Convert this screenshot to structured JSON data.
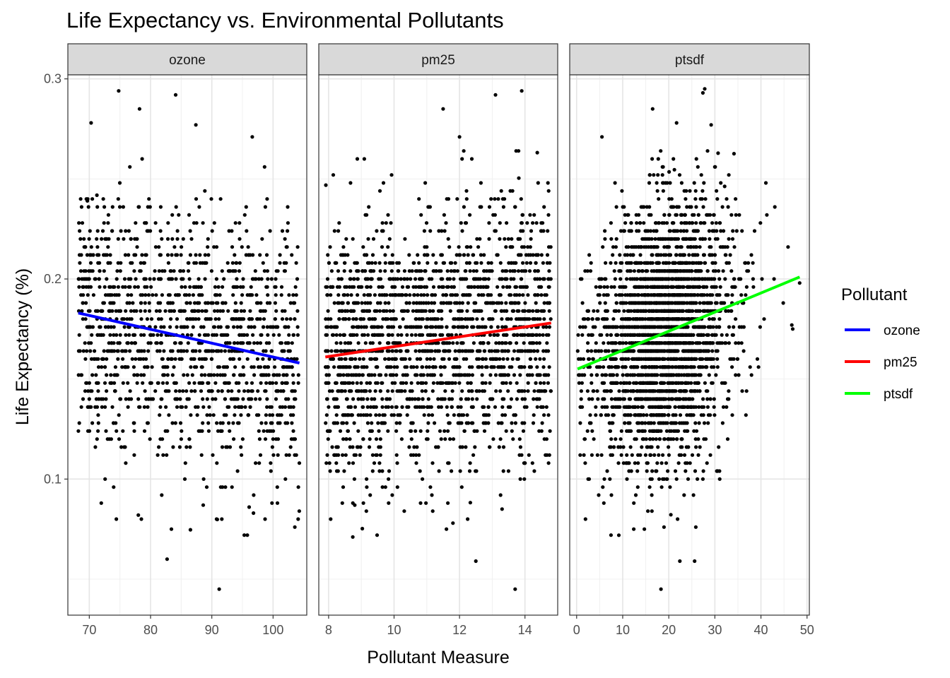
{
  "chart_data": {
    "type": "scatter",
    "title": "Life Expectancy vs. Environmental Pollutants",
    "xlabel": "Pollutant Measure",
    "ylabel": "Life Expectancy (%)",
    "ylim": [
      0.032,
      0.302
    ],
    "yticks": [
      0.1,
      0.2,
      0.3
    ],
    "yminor": [
      0.05,
      0.15,
      0.25
    ],
    "grid": true,
    "legend": {
      "title": "Pollutant",
      "position": "right",
      "entries": [
        {
          "label": "ozone",
          "color": "#0000FF"
        },
        {
          "label": "pm25",
          "color": "#FF0000"
        },
        {
          "label": "ptsdf",
          "color": "#00FF00"
        }
      ]
    },
    "point_color": "#000000",
    "facets": [
      {
        "label": "ozone",
        "xlim": [
          66.5,
          105.5
        ],
        "xticks": [
          70,
          80,
          90,
          100
        ],
        "xminor": [
          75,
          85,
          95
        ],
        "fit": {
          "color": "#0000FF",
          "x": [
            68.2,
            104.3
          ],
          "y": [
            0.183,
            0.158
          ]
        },
        "cloud": {
          "n": 1400,
          "xmin": 68.2,
          "xmax": 104.3,
          "slope": -0.00069,
          "intercept": 0.23,
          "sd": 0.031,
          "seed": 11
        },
        "outliers": [
          [
            74.8,
            0.294
          ],
          [
            78.2,
            0.285
          ],
          [
            84.1,
            0.292
          ],
          [
            70.3,
            0.278
          ],
          [
            87.4,
            0.277
          ],
          [
            96.6,
            0.271
          ],
          [
            91.2,
            0.045
          ],
          [
            82.7,
            0.06
          ],
          [
            83.4,
            0.075
          ],
          [
            78.0,
            0.082
          ],
          [
            78.5,
            0.08
          ],
          [
            96.8,
            0.083
          ],
          [
            96.1,
            0.086
          ],
          [
            88.6,
            0.087
          ]
        ]
      },
      {
        "label": "pm25",
        "xlim": [
          7.7,
          15.0
        ],
        "xticks": [
          8,
          10,
          12,
          14
        ],
        "xminor": [
          9,
          11,
          13
        ],
        "fit": {
          "color": "#FF0000",
          "x": [
            7.9,
            14.8
          ],
          "y": [
            0.161,
            0.178
          ]
        },
        "cloud": {
          "n": 2000,
          "xmin": 7.9,
          "xmax": 14.8,
          "slope": 0.00246,
          "intercept": 0.1416,
          "sd": 0.032,
          "seed": 22
        },
        "outliers": [
          [
            13.1,
            0.292
          ],
          [
            13.9,
            0.294
          ],
          [
            11.5,
            0.285
          ],
          [
            12.0,
            0.271
          ],
          [
            13.7,
            0.045
          ],
          [
            12.5,
            0.059
          ],
          [
            11.6,
            0.075
          ],
          [
            11.8,
            0.078
          ],
          [
            13.3,
            0.085
          ],
          [
            8.8,
            0.087
          ]
        ]
      },
      {
        "label": "ptsdf",
        "xlim": [
          -1.5,
          50.5
        ],
        "xticks": [
          0,
          10,
          20,
          30,
          40,
          50
        ],
        "xminor": [
          5,
          15,
          25,
          35,
          45
        ],
        "fit": {
          "color": "#00FF00",
          "x": [
            0.2,
            48.4
          ],
          "y": [
            0.155,
            0.201
          ]
        },
        "cloud": {
          "n": 3000,
          "xmin": 0.2,
          "xmax": 48.4,
          "xmean": 19,
          "xsd": 7.5,
          "slope": 0.00095,
          "intercept": 0.155,
          "sd": 0.031,
          "seed": 33
        },
        "outliers": [
          [
            27.4,
            0.293
          ],
          [
            27.8,
            0.295
          ],
          [
            16.5,
            0.285
          ],
          [
            21.7,
            0.278
          ],
          [
            29.2,
            0.277
          ],
          [
            5.5,
            0.271
          ],
          [
            18.3,
            0.045
          ],
          [
            22.4,
            0.059
          ],
          [
            25.6,
            0.059
          ],
          [
            12.4,
            0.075
          ],
          [
            14.7,
            0.075
          ],
          [
            46.7,
            0.177
          ],
          [
            46.9,
            0.175
          ],
          [
            48.4,
            0.198
          ]
        ]
      }
    ]
  }
}
